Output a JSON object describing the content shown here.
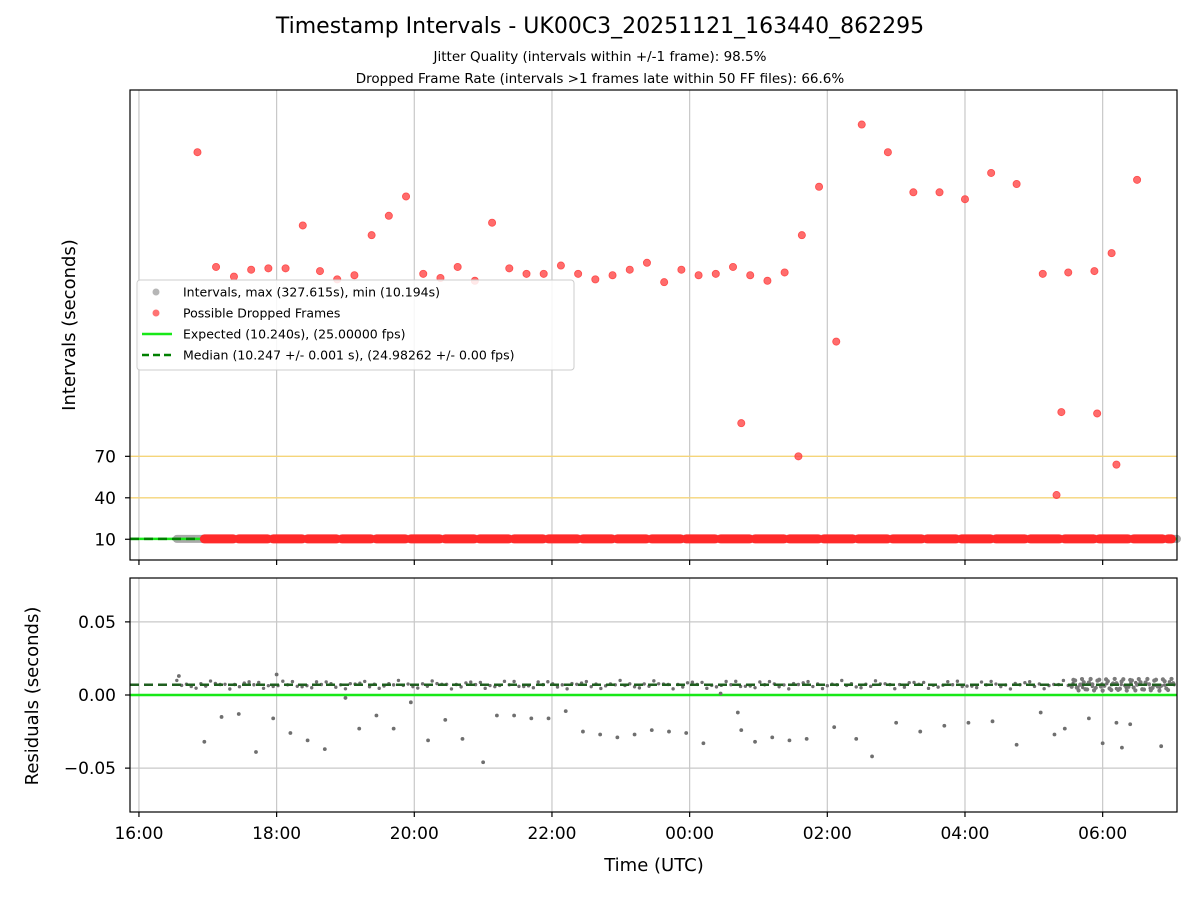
{
  "chart_data": {
    "type": "scatter",
    "title": "Timestamp Intervals - UK00C3_20251121_163440_862295",
    "subtitle_lines": [
      "Jitter Quality (intervals within +/-1 frame): 98.5%",
      "Dropped Frame Rate (intervals >1 frames late within 50 FF files): 66.6%"
    ],
    "xlabel": "Time (UTC)",
    "x_unit": "hours since 16:00 UTC",
    "xlim": [
      -0.13,
      15.08
    ],
    "x_ticks": [
      {
        "value": 0,
        "label": "16:00"
      },
      {
        "value": 2,
        "label": "18:00"
      },
      {
        "value": 4,
        "label": "20:00"
      },
      {
        "value": 6,
        "label": "22:00"
      },
      {
        "value": 8,
        "label": "00:00"
      },
      {
        "value": 10,
        "label": "02:00"
      },
      {
        "value": 12,
        "label": "04:00"
      },
      {
        "value": 14,
        "label": "06:00"
      }
    ],
    "top_panel": {
      "ylabel": "Intervals (seconds)",
      "ylim": [
        -5,
        335
      ],
      "y_ticks": [
        10,
        40,
        70
      ],
      "reference_lines": [
        40,
        70
      ],
      "reference_color": "#f5d57a",
      "legend": [
        {
          "label": "Intervals, max (327.615s), min (10.194s)",
          "style": "marker",
          "color": "#a9a9a9"
        },
        {
          "label": "Possible Dropped Frames",
          "style": "marker",
          "color": "#ff5a5a"
        },
        {
          "label": "Expected (10.240s), (25.00000 fps)",
          "style": "solid",
          "color": "#18e818"
        },
        {
          "label": "Median (10.247 +/- 0.001 s), (24.98262 +/- 0.00 fps)",
          "style": "dashed",
          "color": "#008000"
        }
      ],
      "expected_interval": 10.24,
      "median_interval": 10.247,
      "baseline_intervals": {
        "x_start": 0.55,
        "x_end": 15.08,
        "value": 10.24
      },
      "dropped_frame_points": [
        {
          "x": 0.85,
          "y": 290
        },
        {
          "x": 1.12,
          "y": 207
        },
        {
          "x": 1.38,
          "y": 200
        },
        {
          "x": 1.63,
          "y": 205
        },
        {
          "x": 1.88,
          "y": 206
        },
        {
          "x": 2.13,
          "y": 206
        },
        {
          "x": 2.38,
          "y": 237
        },
        {
          "x": 2.63,
          "y": 204
        },
        {
          "x": 2.88,
          "y": 198
        },
        {
          "x": 3.13,
          "y": 201
        },
        {
          "x": 3.38,
          "y": 230
        },
        {
          "x": 3.63,
          "y": 244
        },
        {
          "x": 3.88,
          "y": 258
        },
        {
          "x": 4.13,
          "y": 202
        },
        {
          "x": 4.38,
          "y": 199
        },
        {
          "x": 4.63,
          "y": 207
        },
        {
          "x": 4.88,
          "y": 197
        },
        {
          "x": 5.13,
          "y": 239
        },
        {
          "x": 5.38,
          "y": 206
        },
        {
          "x": 5.63,
          "y": 202
        },
        {
          "x": 5.88,
          "y": 202
        },
        {
          "x": 6.13,
          "y": 208
        },
        {
          "x": 6.38,
          "y": 202
        },
        {
          "x": 6.63,
          "y": 198
        },
        {
          "x": 6.88,
          "y": 201
        },
        {
          "x": 7.13,
          "y": 205
        },
        {
          "x": 7.38,
          "y": 210
        },
        {
          "x": 7.63,
          "y": 196
        },
        {
          "x": 7.88,
          "y": 205
        },
        {
          "x": 8.13,
          "y": 201
        },
        {
          "x": 8.38,
          "y": 202
        },
        {
          "x": 8.63,
          "y": 207
        },
        {
          "x": 8.88,
          "y": 201
        },
        {
          "x": 9.13,
          "y": 197
        },
        {
          "x": 9.38,
          "y": 203
        },
        {
          "x": 9.63,
          "y": 230
        },
        {
          "x": 9.88,
          "y": 265
        },
        {
          "x": 10.13,
          "y": 153
        },
        {
          "x": 10.5,
          "y": 310
        },
        {
          "x": 10.88,
          "y": 290
        },
        {
          "x": 11.25,
          "y": 261
        },
        {
          "x": 11.63,
          "y": 261
        },
        {
          "x": 12.0,
          "y": 256
        },
        {
          "x": 12.38,
          "y": 275
        },
        {
          "x": 12.75,
          "y": 267
        },
        {
          "x": 13.13,
          "y": 202
        },
        {
          "x": 13.5,
          "y": 203
        },
        {
          "x": 13.88,
          "y": 204
        },
        {
          "x": 14.13,
          "y": 217
        },
        {
          "x": 14.5,
          "y": 270
        },
        {
          "x": 8.75,
          "y": 94
        },
        {
          "x": 9.58,
          "y": 70
        },
        {
          "x": 13.33,
          "y": 42
        },
        {
          "x": 13.4,
          "y": 102
        },
        {
          "x": 13.92,
          "y": 101
        },
        {
          "x": 14.2,
          "y": 64
        }
      ]
    },
    "bottom_panel": {
      "ylabel": "Residuals (seconds)",
      "ylim": [
        -0.08,
        0.08
      ],
      "y_ticks": [
        {
          "value": 0.05,
          "label": "0.05"
        },
        {
          "value": 0.0,
          "label": "0.00"
        },
        {
          "value": -0.05,
          "label": "−0.05"
        }
      ],
      "expected_residual": 0.0,
      "median_residual": 0.007,
      "residual_band": {
        "x_start": 0.55,
        "x_end": 15.08,
        "value": 0.007
      },
      "outlier_points": [
        {
          "x": 0.58,
          "y": 0.013
        },
        {
          "x": 0.95,
          "y": -0.032
        },
        {
          "x": 1.2,
          "y": -0.015
        },
        {
          "x": 1.45,
          "y": -0.013
        },
        {
          "x": 1.7,
          "y": -0.039
        },
        {
          "x": 1.95,
          "y": -0.016
        },
        {
          "x": 2.0,
          "y": 0.014
        },
        {
          "x": 2.2,
          "y": -0.026
        },
        {
          "x": 2.45,
          "y": -0.031
        },
        {
          "x": 2.7,
          "y": -0.037
        },
        {
          "x": 3.0,
          "y": -0.002
        },
        {
          "x": 3.2,
          "y": -0.023
        },
        {
          "x": 3.45,
          "y": -0.014
        },
        {
          "x": 3.7,
          "y": -0.023
        },
        {
          "x": 3.95,
          "y": -0.005
        },
        {
          "x": 4.2,
          "y": -0.031
        },
        {
          "x": 4.45,
          "y": -0.017
        },
        {
          "x": 4.7,
          "y": -0.03
        },
        {
          "x": 5.0,
          "y": -0.046
        },
        {
          "x": 5.2,
          "y": -0.014
        },
        {
          "x": 5.45,
          "y": -0.014
        },
        {
          "x": 5.7,
          "y": -0.016
        },
        {
          "x": 5.95,
          "y": -0.016
        },
        {
          "x": 6.2,
          "y": -0.011
        },
        {
          "x": 6.45,
          "y": -0.025
        },
        {
          "x": 6.7,
          "y": -0.027
        },
        {
          "x": 6.95,
          "y": -0.029
        },
        {
          "x": 7.2,
          "y": -0.027
        },
        {
          "x": 7.45,
          "y": -0.024
        },
        {
          "x": 7.7,
          "y": -0.025
        },
        {
          "x": 7.95,
          "y": -0.026
        },
        {
          "x": 8.2,
          "y": -0.033
        },
        {
          "x": 8.45,
          "y": 0.001
        },
        {
          "x": 8.7,
          "y": -0.012
        },
        {
          "x": 8.75,
          "y": -0.024
        },
        {
          "x": 8.95,
          "y": -0.032
        },
        {
          "x": 9.2,
          "y": -0.029
        },
        {
          "x": 9.45,
          "y": -0.031
        },
        {
          "x": 9.7,
          "y": -0.03
        },
        {
          "x": 10.1,
          "y": -0.022
        },
        {
          "x": 10.42,
          "y": -0.03
        },
        {
          "x": 10.65,
          "y": -0.042
        },
        {
          "x": 11.0,
          "y": -0.019
        },
        {
          "x": 11.35,
          "y": -0.025
        },
        {
          "x": 11.7,
          "y": -0.021
        },
        {
          "x": 12.05,
          "y": -0.019
        },
        {
          "x": 12.4,
          "y": -0.018
        },
        {
          "x": 12.75,
          "y": -0.034
        },
        {
          "x": 13.1,
          "y": -0.012
        },
        {
          "x": 13.3,
          "y": -0.027
        },
        {
          "x": 13.45,
          "y": -0.023
        },
        {
          "x": 13.8,
          "y": -0.016
        },
        {
          "x": 14.0,
          "y": -0.033
        },
        {
          "x": 14.2,
          "y": -0.019
        },
        {
          "x": 14.28,
          "y": -0.036
        },
        {
          "x": 14.4,
          "y": -0.02
        },
        {
          "x": 14.85,
          "y": -0.035
        }
      ]
    }
  }
}
